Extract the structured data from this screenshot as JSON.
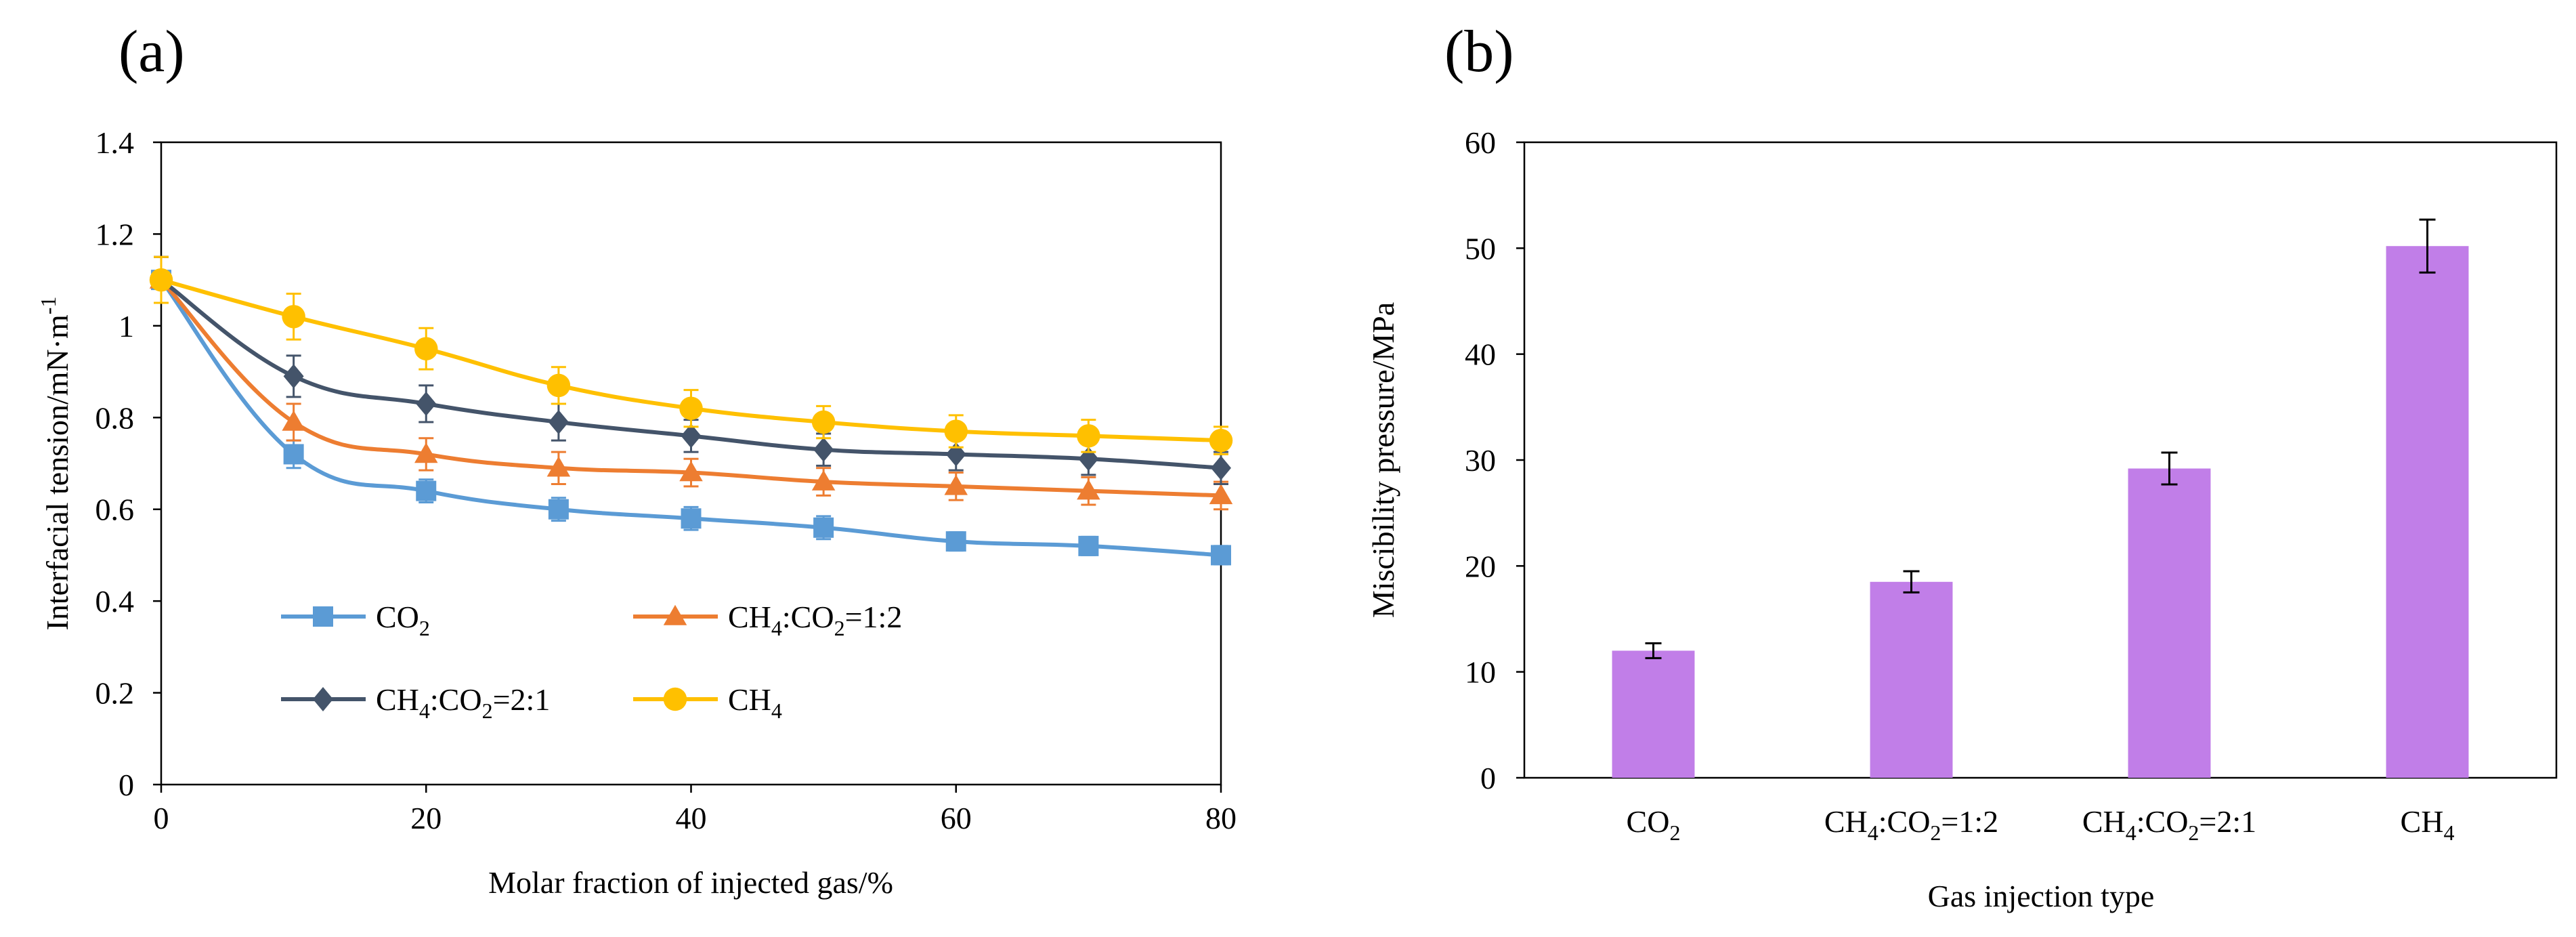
{
  "chart_data": [
    {
      "panel_label": "(a)",
      "type": "line",
      "xlabel": "Molar fraction of injected gas/%",
      "ylabel": "Interfacial tension/mN·m",
      "ylabel_sup": "-1",
      "xlim": [
        0,
        80
      ],
      "ylim": [
        0,
        1.4
      ],
      "x_ticks": [
        0,
        20,
        40,
        60,
        80
      ],
      "y_ticks": [
        0,
        0.2,
        0.4,
        0.6,
        0.8,
        1,
        1.2,
        1.4
      ],
      "y_tick_labels": [
        "0",
        "0.2",
        "0.4",
        "0.6",
        "0.8",
        "1",
        "1.2",
        "1.4"
      ],
      "x": [
        0,
        10,
        20,
        30,
        40,
        50,
        60,
        70,
        80
      ],
      "series": [
        {
          "name": "CO2",
          "label_parts": [
            [
              "CO",
              ""
            ],
            [
              "2",
              "sub"
            ]
          ],
          "color": "#5b9bd5",
          "marker": "square",
          "values": [
            1.1,
            0.72,
            0.64,
            0.6,
            0.58,
            0.56,
            0.53,
            0.52,
            0.5
          ],
          "errors": [
            0.05,
            0.03,
            0.025,
            0.025,
            0.025,
            0.025,
            0.02,
            0.02,
            0.02
          ]
        },
        {
          "name": "CH4:CO2=1:2",
          "label_parts": [
            [
              "CH",
              ""
            ],
            [
              "4",
              "sub"
            ],
            [
              ":CO",
              ""
            ],
            [
              "2",
              "sub"
            ],
            [
              "=1:2",
              ""
            ]
          ],
          "color": "#ed7d31",
          "marker": "triangle",
          "values": [
            1.1,
            0.79,
            0.72,
            0.69,
            0.68,
            0.66,
            0.65,
            0.64,
            0.63
          ],
          "errors": [
            0.05,
            0.04,
            0.035,
            0.035,
            0.03,
            0.03,
            0.03,
            0.03,
            0.03
          ]
        },
        {
          "name": "CH4:CO2=2:1",
          "label_parts": [
            [
              "CH",
              ""
            ],
            [
              "4",
              "sub"
            ],
            [
              ":CO",
              ""
            ],
            [
              "2",
              "sub"
            ],
            [
              "=2:1",
              ""
            ]
          ],
          "color": "#44546a",
          "marker": "diamond",
          "values": [
            1.1,
            0.89,
            0.83,
            0.79,
            0.76,
            0.73,
            0.72,
            0.71,
            0.69
          ],
          "errors": [
            0.05,
            0.045,
            0.04,
            0.04,
            0.035,
            0.035,
            0.035,
            0.035,
            0.035
          ]
        },
        {
          "name": "CH4",
          "label_parts": [
            [
              "CH",
              ""
            ],
            [
              "4",
              "sub"
            ]
          ],
          "color": "#ffc000",
          "marker": "circle",
          "values": [
            1.1,
            1.02,
            0.95,
            0.87,
            0.82,
            0.79,
            0.77,
            0.76,
            0.75
          ],
          "errors": [
            0.05,
            0.05,
            0.045,
            0.04,
            0.04,
            0.035,
            0.035,
            0.035,
            0.03
          ]
        }
      ],
      "legend": "lower-left, two columns"
    },
    {
      "panel_label": "(b)",
      "type": "bar",
      "xlabel": "Gas injection type",
      "ylabel": "Miscibility pressure/MPa",
      "ylim": [
        0,
        60
      ],
      "y_ticks": [
        0,
        10,
        20,
        30,
        40,
        50,
        60
      ],
      "bar_color": "#c17ee8",
      "categories": [
        "CO2",
        "CH4:CO2=1:2",
        "CH4:CO2=2:1",
        "CH4"
      ],
      "category_label_parts": [
        [
          [
            "CO",
            ""
          ],
          [
            "2",
            "sub"
          ]
        ],
        [
          [
            "CH",
            ""
          ],
          [
            "4",
            "sub"
          ],
          [
            ":CO",
            ""
          ],
          [
            "2",
            "sub"
          ],
          [
            "=1:2",
            ""
          ]
        ],
        [
          [
            "CH",
            ""
          ],
          [
            "4",
            "sub"
          ],
          [
            ":CO",
            ""
          ],
          [
            "2",
            "sub"
          ],
          [
            "=2:1",
            ""
          ]
        ],
        [
          [
            "CH",
            ""
          ],
          [
            "4",
            "sub"
          ]
        ]
      ],
      "values": [
        12.0,
        18.5,
        29.2,
        50.2
      ],
      "errors": [
        0.7,
        1.0,
        1.5,
        2.5
      ]
    }
  ]
}
